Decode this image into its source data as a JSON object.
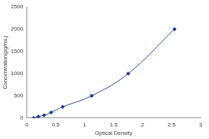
{
  "chart_data": {
    "type": "line",
    "x_label": "Optical Density",
    "y_label": "Concentration(pg/mL)",
    "x": [
      0.12,
      0.2,
      0.3,
      0.42,
      0.62,
      1.12,
      1.75,
      2.55
    ],
    "values": [
      0,
      31,
      62,
      125,
      250,
      500,
      1000,
      2000
    ],
    "color": "#1f3b8c",
    "marker": "diamond",
    "line_style": "solid",
    "xlim": [
      0,
      3
    ],
    "xticks": [
      0,
      0.5,
      1,
      1.5,
      2,
      2.5,
      3
    ],
    "ylim": [
      0,
      2500
    ],
    "yticks": [
      0,
      500,
      1000,
      1500,
      2000,
      2500
    ],
    "grid": false
  }
}
